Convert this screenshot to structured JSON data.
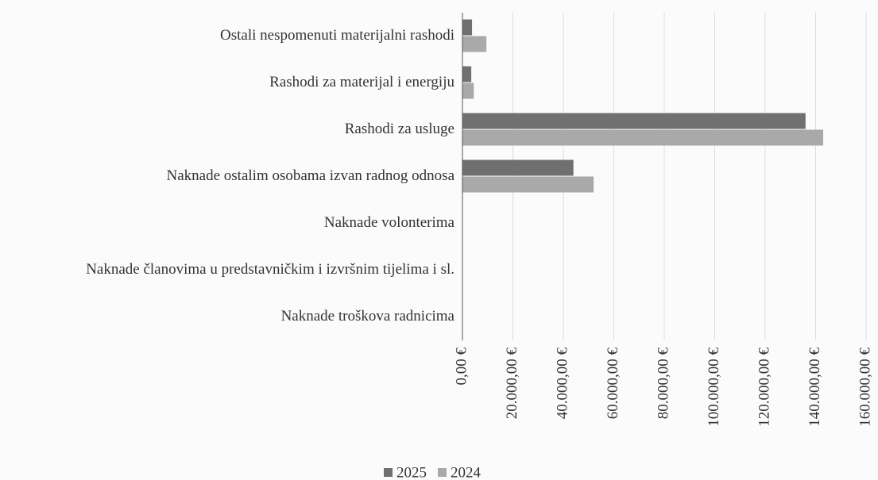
{
  "chart_data": {
    "type": "bar",
    "orientation": "horizontal",
    "categories": [
      "Ostali nespomenuti materijalni rashodi",
      "Rashodi za materijal i energiju",
      "Rashodi za usluge",
      "Naknade ostalim osobama izvan radnog odnosa",
      "Naknade volonterima",
      "Naknade članovima u predstavničkim i izvršnim tijelima i sl.",
      "Naknade troškova radnicima"
    ],
    "series": [
      {
        "name": "2025",
        "color": "#707070",
        "values": [
          3800,
          3500,
          136000,
          44000,
          0,
          0,
          0
        ]
      },
      {
        "name": "2024",
        "color": "#a9a9a9",
        "values": [
          9500,
          4500,
          143000,
          52000,
          0,
          0,
          0
        ]
      }
    ],
    "xlim": [
      0,
      160000
    ],
    "xticks": [
      {
        "value": 0,
        "label": "0,00 €"
      },
      {
        "value": 20000,
        "label": "20.000,00 €"
      },
      {
        "value": 40000,
        "label": "40.000,00 €"
      },
      {
        "value": 60000,
        "label": "60.000,00 €"
      },
      {
        "value": 80000,
        "label": "80.000,00 €"
      },
      {
        "value": 100000,
        "label": "100.000,00 €"
      },
      {
        "value": 120000,
        "label": "120.000,00 €"
      },
      {
        "value": 140000,
        "label": "140.000,00 €"
      },
      {
        "value": 160000,
        "label": "160.000,00 €"
      }
    ],
    "grid": true,
    "legend": "bottom"
  }
}
